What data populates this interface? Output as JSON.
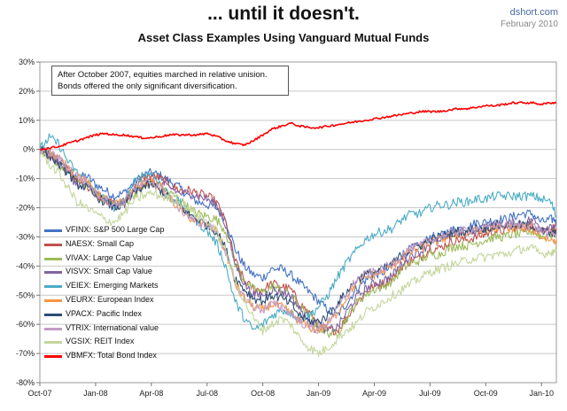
{
  "header": {
    "title": "... until it doesn't.",
    "subtitle": "Asset Class Examples Using Vanguard  Mutual Funds",
    "brand": "dshort.com",
    "date": "February 2010"
  },
  "annotation": {
    "line1": "After October 2007, equities marched in relative unision.",
    "line2": "Bonds offered the only significant diversification."
  },
  "chart_data": {
    "type": "line",
    "title": "Asset Class Examples Using Vanguard  Mutual Funds",
    "ylim": [
      -80,
      30
    ],
    "yticks": [
      30,
      20,
      10,
      0,
      -10,
      -20,
      -30,
      -40,
      -50,
      -60,
      -70,
      -80
    ],
    "ytick_labels": [
      "30%",
      "20%",
      "10%",
      "0%",
      "-10%",
      "-20%",
      "-30%",
      "-40%",
      "-50%",
      "-60%",
      "-70%",
      "-80%"
    ],
    "x_range": [
      0,
      27.8
    ],
    "x_unit": "months since Oct-07",
    "xticks": [
      0,
      3,
      6,
      9,
      12,
      15,
      18,
      21,
      24,
      27
    ],
    "xtick_labels": [
      "Oct-07",
      "Jan-08",
      "Apr-08",
      "Jul-08",
      "Oct-08",
      "Jan-09",
      "Apr-09",
      "Jul-09",
      "Oct-09",
      "Jan-10"
    ],
    "grid": "horizontal",
    "legend_position": "left",
    "x": [
      0,
      0.5,
      1,
      1.5,
      2,
      2.5,
      3,
      3.5,
      4,
      4.5,
      5,
      5.5,
      6,
      6.5,
      7,
      7.5,
      8,
      8.5,
      9,
      9.5,
      10,
      10.5,
      11,
      11.5,
      12,
      12.5,
      13,
      13.5,
      14,
      14.5,
      15,
      15.5,
      16,
      16.5,
      17,
      17.5,
      18,
      18.5,
      19,
      19.5,
      20,
      20.5,
      21,
      21.5,
      22,
      22.5,
      23,
      23.5,
      24,
      24.5,
      25,
      25.5,
      26,
      26.5,
      27,
      27.5,
      27.8
    ],
    "series": [
      {
        "name": "VFINX: S&P 500 Large Cap",
        "color": "#4472c4",
        "values": [
          0,
          -2,
          -4,
          -7,
          -10,
          -9,
          -12,
          -14,
          -16,
          -15,
          -12,
          -9,
          -8,
          -9,
          -11,
          -13,
          -16,
          -18,
          -19,
          -20,
          -24,
          -34,
          -40,
          -43,
          -44,
          -41,
          -41,
          -43,
          -46,
          -49,
          -52,
          -55,
          -57,
          -53,
          -48,
          -45,
          -43,
          -42,
          -40,
          -36,
          -34,
          -33,
          -30,
          -30,
          -28,
          -27,
          -27,
          -25,
          -25,
          -24,
          -24,
          -23,
          -22,
          -22,
          -25,
          -24,
          -24
        ]
      },
      {
        "name": "NAESX: Small Cap",
        "color": "#c0504d",
        "values": [
          0,
          -2,
          -4,
          -7,
          -11,
          -12,
          -15,
          -17,
          -19,
          -18,
          -14,
          -10,
          -9,
          -10,
          -12,
          -14,
          -14,
          -15,
          -16,
          -18,
          -25,
          -38,
          -45,
          -48,
          -48,
          -46,
          -47,
          -48,
          -53,
          -56,
          -60,
          -62,
          -62,
          -58,
          -53,
          -49,
          -47,
          -46,
          -44,
          -40,
          -38,
          -37,
          -34,
          -34,
          -32,
          -31,
          -31,
          -30,
          -29,
          -28,
          -28,
          -27,
          -27,
          -26,
          -28,
          -27,
          -27
        ]
      },
      {
        "name": "VIVAX: Large Cap Value",
        "color": "#9bbb59",
        "values": [
          0,
          -2,
          -5,
          -8,
          -12,
          -12,
          -15,
          -17,
          -19,
          -19,
          -16,
          -13,
          -12,
          -13,
          -15,
          -17,
          -20,
          -22,
          -23,
          -24,
          -28,
          -39,
          -45,
          -48,
          -49,
          -47,
          -48,
          -50,
          -54,
          -57,
          -61,
          -63,
          -63,
          -58,
          -53,
          -50,
          -48,
          -47,
          -45,
          -41,
          -39,
          -38,
          -36,
          -36,
          -34,
          -33,
          -33,
          -32,
          -31,
          -30,
          -30,
          -29,
          -29,
          -28,
          -30,
          -29,
          -29
        ]
      },
      {
        "name": "VISVX: Small Cap Value",
        "color": "#8064a2",
        "values": [
          0,
          -2,
          -4,
          -8,
          -12,
          -12,
          -15,
          -17,
          -19,
          -19,
          -15,
          -12,
          -11,
          -12,
          -13,
          -15,
          -15,
          -16,
          -17,
          -19,
          -26,
          -39,
          -46,
          -50,
          -50,
          -48,
          -49,
          -50,
          -55,
          -58,
          -61,
          -62,
          -61,
          -56,
          -51,
          -48,
          -46,
          -45,
          -43,
          -39,
          -36,
          -35,
          -32,
          -32,
          -30,
          -29,
          -29,
          -28,
          -27,
          -26,
          -26,
          -25,
          -25,
          -24,
          -27,
          -26,
          -26
        ]
      },
      {
        "name": "VEIEX: Emerging Markets",
        "color": "#4bacc6",
        "values": [
          0,
          4,
          2,
          -4,
          -8,
          -10,
          -15,
          -17,
          -20,
          -18,
          -12,
          -9,
          -8,
          -12,
          -16,
          -18,
          -22,
          -25,
          -28,
          -32,
          -40,
          -52,
          -58,
          -62,
          -60,
          -57,
          -55,
          -56,
          -58,
          -57,
          -54,
          -50,
          -44,
          -39,
          -35,
          -31,
          -29,
          -28,
          -27,
          -24,
          -22,
          -22,
          -20,
          -19,
          -19,
          -18,
          -18,
          -17,
          -17,
          -16,
          -16,
          -16,
          -16,
          -16,
          -17,
          -18,
          -23
        ]
      },
      {
        "name": "VEURX: European Index",
        "color": "#f79646",
        "values": [
          0,
          -1,
          -3,
          -6,
          -9,
          -11,
          -15,
          -17,
          -19,
          -18,
          -14,
          -12,
          -11,
          -13,
          -17,
          -20,
          -23,
          -25,
          -26,
          -28,
          -35,
          -46,
          -51,
          -54,
          -55,
          -53,
          -54,
          -56,
          -59,
          -61,
          -62,
          -60,
          -56,
          -51,
          -46,
          -44,
          -43,
          -42,
          -40,
          -37,
          -35,
          -34,
          -32,
          -31,
          -30,
          -29,
          -29,
          -28,
          -28,
          -27,
          -27,
          -27,
          -27,
          -27,
          -30,
          -31,
          -31
        ]
      },
      {
        "name": "VPACX: Pacific Index",
        "color": "#2c4d75",
        "values": [
          0,
          -2,
          -5,
          -8,
          -12,
          -13,
          -16,
          -18,
          -20,
          -19,
          -15,
          -13,
          -12,
          -14,
          -17,
          -19,
          -22,
          -24,
          -26,
          -28,
          -34,
          -44,
          -48,
          -51,
          -52,
          -50,
          -51,
          -53,
          -57,
          -59,
          -59,
          -57,
          -53,
          -49,
          -45,
          -43,
          -42,
          -41,
          -39,
          -36,
          -34,
          -33,
          -31,
          -30,
          -29,
          -28,
          -28,
          -27,
          -27,
          -26,
          -26,
          -26,
          -26,
          -26,
          -28,
          -29,
          -29
        ]
      },
      {
        "name": "VTRIX: International value",
        "color": "#c39bc4",
        "values": [
          0,
          -1,
          -3,
          -6,
          -9,
          -11,
          -15,
          -17,
          -19,
          -18,
          -14,
          -12,
          -11,
          -13,
          -17,
          -20,
          -23,
          -25,
          -26,
          -28,
          -35,
          -46,
          -51,
          -54,
          -55,
          -53,
          -54,
          -56,
          -59,
          -61,
          -62,
          -59,
          -55,
          -50,
          -45,
          -43,
          -42,
          -41,
          -39,
          -36,
          -34,
          -33,
          -31,
          -30,
          -29,
          -28,
          -28,
          -27,
          -27,
          -26,
          -26,
          -26,
          -26,
          -26,
          -28,
          -29,
          -29
        ]
      },
      {
        "name": "VGSIX: REIT Index",
        "color": "#c3d69b",
        "values": [
          0,
          -5,
          -8,
          -13,
          -18,
          -20,
          -22,
          -24,
          -25,
          -22,
          -18,
          -16,
          -15,
          -16,
          -17,
          -18,
          -20,
          -23,
          -25,
          -28,
          -35,
          -45,
          -52,
          -58,
          -62,
          -60,
          -58,
          -60,
          -65,
          -68,
          -70,
          -68,
          -65,
          -62,
          -60,
          -56,
          -54,
          -52,
          -50,
          -48,
          -46,
          -44,
          -42,
          -41,
          -40,
          -39,
          -38,
          -37,
          -37,
          -36,
          -36,
          -35,
          -34,
          -34,
          -36,
          -35,
          -35
        ]
      },
      {
        "name": "VBMFX: Total Bond Index",
        "color": "#ff0000",
        "values": [
          0,
          0.5,
          1,
          2,
          3,
          4,
          5,
          5.5,
          5,
          5,
          4.5,
          4,
          4,
          4.5,
          5,
          5,
          5,
          5,
          5.5,
          4.5,
          3,
          2,
          1.5,
          3,
          5,
          7,
          8,
          9,
          8,
          7.5,
          7.5,
          8,
          8.5,
          9,
          9.5,
          10,
          10.5,
          11,
          11.5,
          12,
          12.5,
          13,
          13,
          13,
          13.5,
          14,
          14,
          14.5,
          15,
          15,
          15.5,
          16,
          16,
          16,
          15.5,
          16,
          16
        ]
      }
    ]
  }
}
